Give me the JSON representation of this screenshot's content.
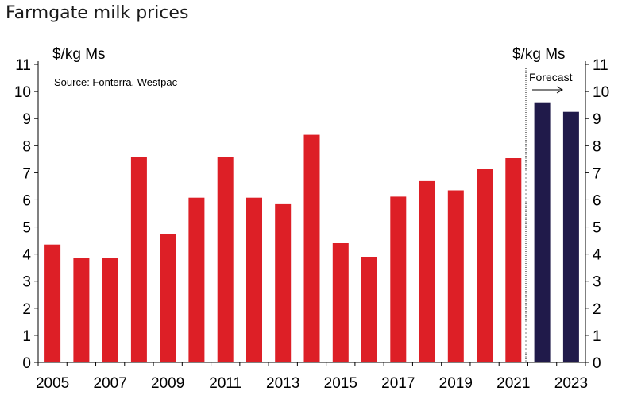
{
  "chart_data": {
    "type": "bar",
    "title": "Farmgate milk prices",
    "source": "Source: Fonterra, Westpac",
    "ylabel_left": "$/kg Ms",
    "ylabel_right": "$/kg Ms",
    "forecast_label": "Forecast",
    "ylim": [
      0,
      11
    ],
    "yticks": [
      "0",
      "1",
      "2",
      "3",
      "4",
      "5",
      "6",
      "7",
      "8",
      "9",
      "10",
      "11"
    ],
    "x_tick_labels": [
      "2005",
      "2007",
      "2009",
      "2011",
      "2013",
      "2015",
      "2017",
      "2019",
      "2021",
      "2023"
    ],
    "categories": [
      "2005",
      "2006",
      "2007",
      "2008",
      "2009",
      "2010",
      "2011",
      "2012",
      "2013",
      "2014",
      "2015",
      "2016",
      "2017",
      "2018",
      "2019",
      "2020",
      "2021",
      "2022",
      "2023"
    ],
    "values": [
      4.35,
      3.85,
      3.87,
      7.59,
      4.75,
      6.08,
      7.59,
      6.08,
      5.84,
      8.4,
      4.4,
      3.9,
      6.12,
      6.69,
      6.35,
      7.14,
      7.54,
      9.6,
      9.25
    ],
    "forecast_from": "2022",
    "colors": {
      "actual": "#dd1f26",
      "forecast": "#201a4a"
    },
    "grid": false
  }
}
